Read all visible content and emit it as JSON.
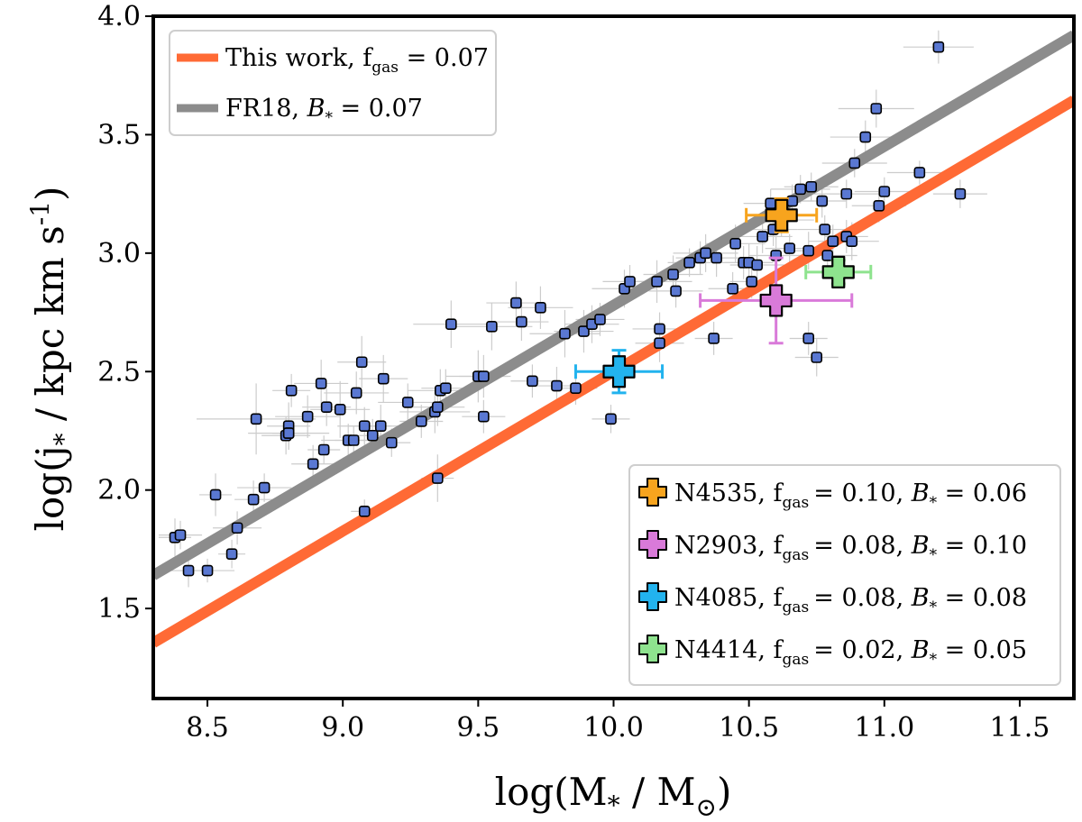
{
  "chart_data": {
    "type": "scatter",
    "xlabel": "log(M* / M⊙)",
    "ylabel": "log(j* / kpc km s⁻¹)",
    "xlabel_parts": {
      "pre": "log(M",
      "sub": "*",
      "post": " / M",
      "post_sub": "⊙",
      "close": ")"
    },
    "ylabel_parts": {
      "pre": "log(j",
      "sub": "*",
      "post": " / kpc km s",
      "sup": "-1",
      "close": ")"
    },
    "xlim": [
      8.3,
      11.7
    ],
    "ylim": [
      1.12,
      4.0
    ],
    "xticks": [
      "8.5",
      "9.0",
      "9.5",
      "10.0",
      "10.5",
      "11.0",
      "11.5"
    ],
    "xtick_values": [
      8.5,
      9.0,
      9.5,
      10.0,
      10.5,
      11.0,
      11.5
    ],
    "yticks": [
      "1.5",
      "2.0",
      "2.5",
      "3.0",
      "3.5",
      "4.0"
    ],
    "ytick_values": [
      1.5,
      2.0,
      2.5,
      3.0,
      3.5,
      4.0
    ],
    "grid": false,
    "lines": [
      {
        "name": "This work, f_gas = 0.07",
        "label_pre": "This work, f",
        "label_sub": "gas",
        "label_post": " = 0.07",
        "color": "#ff6a35",
        "x": [
          8.3,
          11.7
        ],
        "y": [
          1.355,
          3.645
        ]
      },
      {
        "name": "FR18, B* = 0.07",
        "label_pre": "FR18, ",
        "label_script": "B",
        "label_sub": "*",
        "label_post": " = 0.07",
        "color": "#8c8c8c",
        "x": [
          8.3,
          11.7
        ],
        "y": [
          1.64,
          3.92
        ]
      }
    ],
    "sample_points": {
      "name": "galaxy sample",
      "color": "#5a78d2",
      "x": [
        8.38,
        8.4,
        8.43,
        8.5,
        8.53,
        8.59,
        8.61,
        8.67,
        8.68,
        8.71,
        8.79,
        8.8,
        8.8,
        8.8,
        8.81,
        8.87,
        8.89,
        8.92,
        8.93,
        8.94,
        8.99,
        9.02,
        9.04,
        9.05,
        9.07,
        9.08,
        9.08,
        9.11,
        9.14,
        9.15,
        9.18,
        9.24,
        9.29,
        9.34,
        9.35,
        9.35,
        9.36,
        9.38,
        9.4,
        9.5,
        9.52,
        9.52,
        9.55,
        9.64,
        9.66,
        9.7,
        9.73,
        9.79,
        9.82,
        9.86,
        9.89,
        9.92,
        9.95,
        9.99,
        10.04,
        10.06,
        10.16,
        10.17,
        10.17,
        10.22,
        10.23,
        10.28,
        10.32,
        10.34,
        10.37,
        10.38,
        10.44,
        10.45,
        10.48,
        10.5,
        10.51,
        10.53,
        10.55,
        10.58,
        10.59,
        10.6,
        10.62,
        10.65,
        10.66,
        10.69,
        10.72,
        10.72,
        10.73,
        10.75,
        10.77,
        10.78,
        10.79,
        10.81,
        10.86,
        10.86,
        10.88,
        10.89,
        10.93,
        10.97,
        10.98,
        11.0,
        11.13,
        11.2,
        11.28
      ],
      "y": [
        1.8,
        1.81,
        1.66,
        1.66,
        1.98,
        1.73,
        1.84,
        1.96,
        2.3,
        2.01,
        2.23,
        2.27,
        2.24,
        2.24,
        2.42,
        2.31,
        2.11,
        2.45,
        2.17,
        2.35,
        2.34,
        2.21,
        2.21,
        2.41,
        2.54,
        1.91,
        2.27,
        2.23,
        2.27,
        2.47,
        2.2,
        2.37,
        2.29,
        2.33,
        2.35,
        2.05,
        2.42,
        2.43,
        2.7,
        2.48,
        2.48,
        2.31,
        2.69,
        2.79,
        2.71,
        2.46,
        2.77,
        2.44,
        2.66,
        2.43,
        2.67,
        2.7,
        2.72,
        2.3,
        2.85,
        2.88,
        2.88,
        2.62,
        2.68,
        2.91,
        2.84,
        2.96,
        2.98,
        3.0,
        2.64,
        2.98,
        2.85,
        3.04,
        2.96,
        2.96,
        2.88,
        2.95,
        3.07,
        3.21,
        3.1,
        2.99,
        3.14,
        3.02,
        3.22,
        3.27,
        3.01,
        2.64,
        3.28,
        2.56,
        3.22,
        3.1,
        2.99,
        3.05,
        3.25,
        3.07,
        3.05,
        3.38,
        3.49,
        3.61,
        3.2,
        3.26,
        3.34,
        3.87,
        3.25
      ],
      "xerr": [
        0.06,
        0.08,
        0.07,
        0.1,
        0.06,
        0.05,
        0.09,
        0.07,
        0.22,
        0.1,
        0.09,
        0.08,
        0.15,
        0.06,
        0.07,
        0.12,
        0.08,
        0.1,
        0.06,
        0.09,
        0.11,
        0.1,
        0.07,
        0.12,
        0.09,
        0.05,
        0.1,
        0.08,
        0.12,
        0.09,
        0.07,
        0.11,
        0.08,
        0.13,
        0.1,
        0.06,
        0.12,
        0.09,
        0.14,
        0.12,
        0.09,
        0.08,
        0.15,
        0.11,
        0.1,
        0.08,
        0.12,
        0.09,
        0.13,
        0.08,
        0.11,
        0.1,
        0.09,
        0.07,
        0.12,
        0.1,
        0.13,
        0.09,
        0.1,
        0.11,
        0.1,
        0.08,
        0.09,
        0.12,
        0.07,
        0.1,
        0.09,
        0.11,
        0.1,
        0.09,
        0.08,
        0.1,
        0.11,
        0.1,
        0.09,
        0.1,
        0.12,
        0.09,
        0.08,
        0.11,
        0.09,
        0.07,
        0.1,
        0.08,
        0.09,
        0.1,
        0.11,
        0.09,
        0.12,
        0.08,
        0.1,
        0.12,
        0.13,
        0.14,
        0.1,
        0.11,
        0.12,
        0.13,
        0.1
      ],
      "yerr": [
        0.08,
        0.06,
        0.07,
        0.05,
        0.09,
        0.06,
        0.07,
        0.08,
        0.15,
        0.06,
        0.08,
        0.1,
        0.07,
        0.06,
        0.07,
        0.09,
        0.08,
        0.1,
        0.06,
        0.08,
        0.12,
        0.07,
        0.06,
        0.09,
        0.11,
        0.05,
        0.08,
        0.07,
        0.09,
        0.1,
        0.06,
        0.08,
        0.07,
        0.09,
        0.08,
        0.1,
        0.09,
        0.08,
        0.1,
        0.11,
        0.09,
        0.07,
        0.1,
        0.09,
        0.08,
        0.07,
        0.09,
        0.08,
        0.1,
        0.07,
        0.09,
        0.08,
        0.07,
        0.06,
        0.08,
        0.07,
        0.09,
        0.08,
        0.07,
        0.08,
        0.07,
        0.06,
        0.07,
        0.08,
        0.07,
        0.08,
        0.07,
        0.08,
        0.07,
        0.08,
        0.07,
        0.08,
        0.07,
        0.06,
        0.07,
        0.08,
        0.07,
        0.06,
        0.07,
        0.06,
        0.08,
        0.07,
        0.06,
        0.08,
        0.07,
        0.06,
        0.08,
        0.07,
        0.06,
        0.07,
        0.08,
        0.06,
        0.07,
        0.08,
        0.07,
        0.06,
        0.05,
        0.07,
        0.06
      ]
    },
    "highlight_points": [
      {
        "name": "N4535",
        "legend": "N4535, f_gas = 0.10, B* = 0.06",
        "id": "N4535",
        "fgas": "0.10",
        "bstar": "0.06",
        "color": "#f7a41e",
        "x": 10.62,
        "y": 3.16,
        "xerr_lo": 0.13,
        "xerr_hi": 0.13,
        "yerr_lo": 0.07,
        "yerr_hi": 0.07
      },
      {
        "name": "N2903",
        "legend": "N2903, f_gas = 0.08, B* = 0.10",
        "id": "N2903",
        "fgas": "0.08",
        "bstar": "0.10",
        "color": "#d97ad9",
        "x": 10.6,
        "y": 2.8,
        "xerr_lo": 0.28,
        "xerr_hi": 0.28,
        "yerr_lo": 0.18,
        "yerr_hi": 0.18
      },
      {
        "name": "N4085",
        "legend": "N4085, f_gas = 0.08, B* = 0.08",
        "id": "N4085",
        "fgas": "0.08",
        "bstar": "0.08",
        "color": "#22b3ee",
        "x": 10.02,
        "y": 2.5,
        "xerr_lo": 0.16,
        "xerr_hi": 0.16,
        "yerr_lo": 0.09,
        "yerr_hi": 0.09
      },
      {
        "name": "N4414",
        "legend": "N4414, f_gas = 0.02, B* = 0.05",
        "id": "N4414",
        "fgas": "0.02",
        "bstar": "0.05",
        "color": "#8ee38e",
        "x": 10.83,
        "y": 2.92,
        "xerr_lo": 0.12,
        "xerr_hi": 0.12,
        "yerr_lo": 0.05,
        "yerr_hi": 0.05
      }
    ],
    "legend_top": {
      "position": "top-left"
    },
    "legend_bottom": {
      "position": "lower-right"
    }
  },
  "colors": {
    "axis": "#000000",
    "errorbar_gray": "#cccccc",
    "legend_border": "#cccccc",
    "marker_edge": "#000000"
  }
}
